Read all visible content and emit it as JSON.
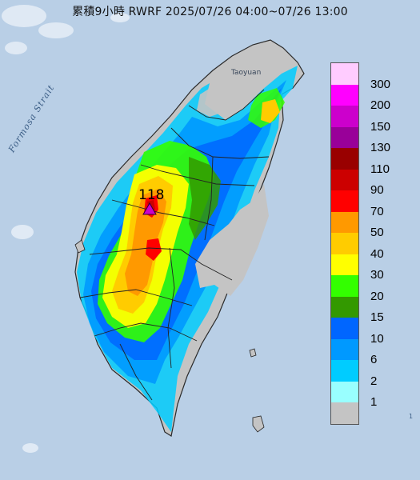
{
  "title": "累積9小時 RWRF 2025/07/26 04:00~07/26 13:00",
  "map_labels": {
    "strait": "Formosa Strait",
    "city": "Taoyuan",
    "max_value": "118",
    "corner": "1"
  },
  "legend": {
    "items": [
      {
        "label": "300",
        "color": "#ffccff"
      },
      {
        "label": "200",
        "color": "#ff00ff"
      },
      {
        "label": "150",
        "color": "#cc00cc"
      },
      {
        "label": "130",
        "color": "#990099"
      },
      {
        "label": "110",
        "color": "#990000"
      },
      {
        "label": "90",
        "color": "#cc0000"
      },
      {
        "label": "70",
        "color": "#ff0000"
      },
      {
        "label": "50",
        "color": "#ff9900"
      },
      {
        "label": "40",
        "color": "#ffcc00"
      },
      {
        "label": "30",
        "color": "#ffff00"
      },
      {
        "label": "20",
        "color": "#33ff00"
      },
      {
        "label": "15",
        "color": "#339900"
      },
      {
        "label": "10",
        "color": "#0066ff"
      },
      {
        "label": "6",
        "color": "#0099ff"
      },
      {
        "label": "2",
        "color": "#00ccff"
      },
      {
        "label": "1",
        "color": "#99ffff"
      },
      {
        "label": "",
        "color": "#c4c4c4"
      }
    ]
  },
  "colors": {
    "sea": "#b9cfe6",
    "land_dry": "#c4c4c4",
    "border": "#222222"
  }
}
